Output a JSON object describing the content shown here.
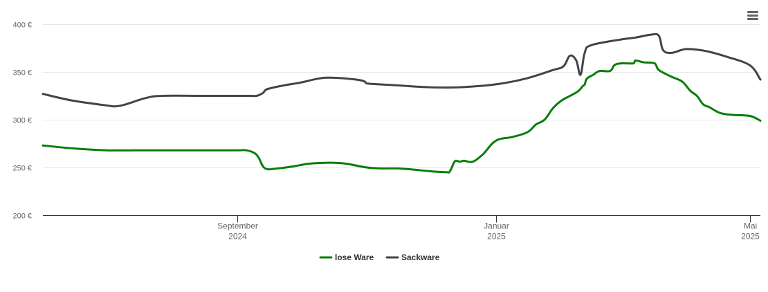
{
  "chart_data": {
    "type": "line",
    "title": "",
    "xlabel": "",
    "ylabel": "",
    "ylim": [
      200,
      400
    ],
    "yticks": [
      {
        "value": 200,
        "label": "200 €"
      },
      {
        "value": 250,
        "label": "250 €"
      },
      {
        "value": 300,
        "label": "300 €"
      },
      {
        "value": 350,
        "label": "350 €"
      },
      {
        "value": 400,
        "label": "400 €"
      }
    ],
    "xlim": [
      "2024-06-01",
      "2025-05-06"
    ],
    "xticks": [
      {
        "date": "2024-09-01",
        "line1": "September",
        "line2": "2024"
      },
      {
        "date": "2025-01-01",
        "line1": "Januar",
        "line2": "2025"
      },
      {
        "date": "2025-05-01",
        "line1": "Mai",
        "line2": "2025"
      }
    ],
    "legend_position": "bottom-center",
    "series": [
      {
        "name": "lose Ware",
        "color": "#0a7d0a",
        "points": [
          [
            "2024-06-01",
            273
          ],
          [
            "2024-06-15",
            270
          ],
          [
            "2024-07-01",
            268
          ],
          [
            "2024-07-15",
            268
          ],
          [
            "2024-08-01",
            268
          ],
          [
            "2024-08-15",
            268
          ],
          [
            "2024-09-01",
            268
          ],
          [
            "2024-09-05",
            268
          ],
          [
            "2024-09-09",
            265
          ],
          [
            "2024-09-11",
            260
          ],
          [
            "2024-09-14",
            249
          ],
          [
            "2024-09-20",
            249
          ],
          [
            "2024-09-27",
            251
          ],
          [
            "2024-10-05",
            254
          ],
          [
            "2024-10-15",
            255
          ],
          [
            "2024-10-22",
            254
          ],
          [
            "2024-11-01",
            250
          ],
          [
            "2024-11-08",
            249
          ],
          [
            "2024-11-15",
            249
          ],
          [
            "2024-11-22",
            248
          ],
          [
            "2024-12-01",
            246
          ],
          [
            "2024-12-09",
            245
          ],
          [
            "2024-12-10",
            245
          ],
          [
            "2024-12-11",
            249
          ],
          [
            "2024-12-12",
            254
          ],
          [
            "2024-12-13",
            257
          ],
          [
            "2024-12-15",
            256
          ],
          [
            "2024-12-17",
            257
          ],
          [
            "2024-12-21",
            256
          ],
          [
            "2024-12-26",
            264
          ],
          [
            "2025-01-01",
            278
          ],
          [
            "2025-01-09",
            282
          ],
          [
            "2025-01-16",
            287
          ],
          [
            "2025-01-20",
            295
          ],
          [
            "2025-01-24",
            300
          ],
          [
            "2025-01-28",
            312
          ],
          [
            "2025-02-01",
            320
          ],
          [
            "2025-02-06",
            326
          ],
          [
            "2025-02-09",
            330
          ],
          [
            "2025-02-11",
            335
          ],
          [
            "2025-02-12",
            337
          ],
          [
            "2025-02-13",
            343
          ],
          [
            "2025-02-16",
            347
          ],
          [
            "2025-02-19",
            351
          ],
          [
            "2025-02-24",
            351
          ],
          [
            "2025-02-26",
            357
          ],
          [
            "2025-03-01",
            359
          ],
          [
            "2025-03-07",
            359
          ],
          [
            "2025-03-08",
            362
          ],
          [
            "2025-03-12",
            360
          ],
          [
            "2025-03-17",
            359
          ],
          [
            "2025-03-19",
            352
          ],
          [
            "2025-03-25",
            345
          ],
          [
            "2025-03-30",
            340
          ],
          [
            "2025-04-03",
            330
          ],
          [
            "2025-04-06",
            325
          ],
          [
            "2025-04-09",
            316
          ],
          [
            "2025-04-12",
            313
          ],
          [
            "2025-04-17",
            307
          ],
          [
            "2025-04-23",
            305
          ],
          [
            "2025-05-01",
            304
          ],
          [
            "2025-05-06",
            299
          ]
        ]
      },
      {
        "name": "Sackware",
        "color": "#434348",
        "points": [
          [
            "2024-06-01",
            327
          ],
          [
            "2024-06-15",
            320
          ],
          [
            "2024-07-01",
            315
          ],
          [
            "2024-07-05",
            314
          ],
          [
            "2024-07-10",
            316
          ],
          [
            "2024-07-20",
            323
          ],
          [
            "2024-07-28",
            325
          ],
          [
            "2024-08-15",
            325
          ],
          [
            "2024-09-01",
            325
          ],
          [
            "2024-09-07",
            325
          ],
          [
            "2024-09-10",
            325
          ],
          [
            "2024-09-13",
            328
          ],
          [
            "2024-09-15",
            332
          ],
          [
            "2024-09-23",
            336
          ],
          [
            "2024-10-01",
            339
          ],
          [
            "2024-10-09",
            343
          ],
          [
            "2024-10-15",
            344
          ],
          [
            "2024-10-27",
            342
          ],
          [
            "2024-10-31",
            340
          ],
          [
            "2024-11-01",
            338
          ],
          [
            "2024-11-15",
            336
          ],
          [
            "2024-12-01",
            334
          ],
          [
            "2024-12-15",
            334
          ],
          [
            "2025-01-01",
            337
          ],
          [
            "2025-01-15",
            343
          ],
          [
            "2025-01-28",
            352
          ],
          [
            "2025-02-02",
            356
          ],
          [
            "2025-02-05",
            367
          ],
          [
            "2025-02-08",
            362
          ],
          [
            "2025-02-10",
            347
          ],
          [
            "2025-02-12",
            370
          ],
          [
            "2025-02-15",
            378
          ],
          [
            "2025-03-01",
            384
          ],
          [
            "2025-03-08",
            386
          ],
          [
            "2025-03-15",
            389
          ],
          [
            "2025-03-19",
            388
          ],
          [
            "2025-03-21",
            373
          ],
          [
            "2025-03-25",
            370
          ],
          [
            "2025-04-01",
            374
          ],
          [
            "2025-04-10",
            372
          ],
          [
            "2025-04-20",
            366
          ],
          [
            "2025-05-01",
            357
          ],
          [
            "2025-05-06",
            342
          ]
        ]
      }
    ]
  },
  "ui": {
    "menu_icon": "hamburger-menu-icon"
  }
}
